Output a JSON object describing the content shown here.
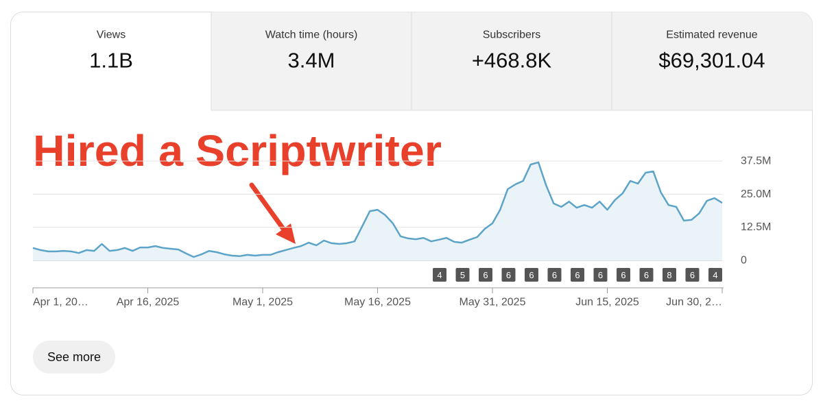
{
  "metrics": [
    {
      "label": "Views",
      "value": "1.1B"
    },
    {
      "label": "Watch time (hours)",
      "value": "3.4M"
    },
    {
      "label": "Subscribers",
      "value": "+468.8K"
    },
    {
      "label": "Estimated revenue",
      "value": "$69,301.04"
    }
  ],
  "annotation": "Hired a Scriptwriter",
  "button": "See more",
  "chart_data": {
    "type": "line",
    "color": "#5ba3c7",
    "fill": "#eaf3f8",
    "categories": [
      "Apr 1, 20…",
      null,
      null,
      null,
      null,
      null,
      null,
      null,
      null,
      null,
      null,
      null,
      null,
      null,
      null,
      "Apr 16, 2025",
      null,
      null,
      null,
      null,
      null,
      null,
      null,
      null,
      null,
      null,
      null,
      null,
      null,
      null,
      "May 1, 2025",
      null,
      null,
      null,
      null,
      null,
      null,
      null,
      null,
      null,
      null,
      null,
      null,
      null,
      null,
      "May 16, 2025",
      null,
      null,
      null,
      null,
      null,
      null,
      null,
      null,
      null,
      null,
      null,
      null,
      null,
      null,
      "May 31, 2025",
      null,
      null,
      null,
      null,
      null,
      null,
      null,
      null,
      null,
      null,
      null,
      null,
      null,
      null,
      "Jun 15, 2025",
      null,
      null,
      null,
      null,
      null,
      null,
      null,
      null,
      null,
      null,
      null,
      null,
      null,
      null,
      "Jun 30, 2…"
    ],
    "values": [
      4.7,
      3.9,
      3.4,
      3.4,
      3.6,
      3.4,
      2.8,
      3.9,
      3.6,
      6.2,
      3.6,
      3.9,
      4.7,
      3.6,
      4.9,
      4.9,
      5.4,
      4.7,
      4.4,
      4.1,
      2.6,
      1.3,
      2.3,
      3.6,
      3.1,
      2.3,
      1.8,
      1.6,
      2.1,
      1.8,
      2.1,
      2.1,
      3.1,
      3.9,
      4.7,
      5.4,
      6.7,
      5.7,
      7.5,
      6.5,
      6.2,
      6.5,
      7.2,
      12.9,
      18.6,
      19.1,
      17.1,
      14.0,
      9.1,
      8.3,
      8.0,
      8.5,
      7.2,
      7.8,
      8.5,
      7.0,
      6.7,
      7.8,
      8.8,
      11.9,
      14.0,
      19.1,
      26.9,
      28.7,
      30.0,
      36.2,
      37.0,
      28.4,
      21.5,
      20.2,
      22.2,
      19.9,
      20.9,
      19.9,
      22.2,
      19.1,
      22.8,
      25.3,
      30.0,
      29.0,
      33.1,
      33.6,
      25.6,
      20.9,
      20.2,
      15.0,
      15.3,
      17.8,
      22.5,
      23.5,
      21.7
    ],
    "ylim": [
      0,
      37.5
    ],
    "yticks": [
      0,
      {
        "value": 12.5,
        "label": "12.5M"
      },
      {
        "value": 25,
        "label": "25.0M"
      },
      {
        "value": 37.5,
        "label": "37.5M"
      }
    ],
    "grid": true,
    "markers": [
      4,
      5,
      6,
      6,
      6,
      6,
      6,
      6,
      6,
      6,
      8,
      6,
      4
    ]
  }
}
